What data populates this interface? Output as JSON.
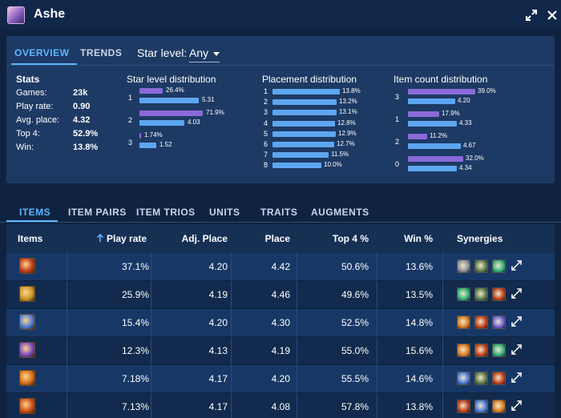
{
  "window": {
    "title": "Ashe"
  },
  "top_tabs": [
    {
      "label": "OVERVIEW",
      "active": true
    },
    {
      "label": "TRENDS",
      "active": false
    }
  ],
  "star_filter": {
    "label": "Star level:",
    "value": "Any"
  },
  "stats": {
    "title": "Stats",
    "rows": [
      {
        "label": "Games:",
        "value": "23k"
      },
      {
        "label": "Play rate:",
        "value": "0.90"
      },
      {
        "label": "Avg. place:",
        "value": "4.32"
      },
      {
        "label": "Top 4:",
        "value": "52.9%"
      },
      {
        "label": "Win:",
        "value": "13.8%"
      }
    ]
  },
  "star_distribution": {
    "title": "Star level distribution",
    "rows": [
      {
        "label": "1",
        "purple": 26.4,
        "purple_text": "26.4%",
        "blue": 5.31,
        "blue_text": "5.31"
      },
      {
        "label": "2",
        "purple": 71.9,
        "purple_text": "71.9%",
        "blue": 4.03,
        "blue_text": "4.03"
      },
      {
        "label": "3",
        "purple": 1.74,
        "purple_text": "1.74%",
        "blue": 1.52,
        "blue_text": "1.52"
      }
    ]
  },
  "placement_distribution": {
    "title": "Placement distribution",
    "rows": [
      {
        "label": "1",
        "value": 13.8,
        "text": "13.8%"
      },
      {
        "label": "2",
        "value": 13.2,
        "text": "13.2%"
      },
      {
        "label": "3",
        "value": 13.1,
        "text": "13.1%"
      },
      {
        "label": "4",
        "value": 12.8,
        "text": "12.8%"
      },
      {
        "label": "5",
        "value": 12.9,
        "text": "12.9%"
      },
      {
        "label": "6",
        "value": 12.7,
        "text": "12.7%"
      },
      {
        "label": "7",
        "value": 11.5,
        "text": "11.5%"
      },
      {
        "label": "8",
        "value": 10.0,
        "text": "10.0%"
      }
    ]
  },
  "item_count_distribution": {
    "title": "Item count distribution",
    "rows": [
      {
        "label": "3",
        "purple": 39.0,
        "purple_text": "39.0%",
        "blue": 4.2,
        "blue_text": "4.20"
      },
      {
        "label": "1",
        "purple": 17.9,
        "purple_text": "17.9%",
        "blue": 4.33,
        "blue_text": "4.33"
      },
      {
        "label": "2",
        "purple": 11.2,
        "purple_text": "11.2%",
        "blue": 4.67,
        "blue_text": "4.67"
      },
      {
        "label": "0",
        "purple": 32.0,
        "purple_text": "32.0%",
        "blue": 4.34,
        "blue_text": "4.34"
      }
    ]
  },
  "bottom_tabs": [
    {
      "label": "ITEMS",
      "active": true
    },
    {
      "label": "ITEM PAIRS",
      "active": false
    },
    {
      "label": "ITEM TRIOS",
      "active": false
    },
    {
      "label": "UNITS",
      "active": false
    },
    {
      "label": "TRAITS",
      "active": false
    },
    {
      "label": "AUGMENTS",
      "active": false
    }
  ],
  "table": {
    "columns": [
      "Items",
      "Play rate",
      "Adj. Place",
      "Place",
      "Top 4 %",
      "Win %",
      "Synergies"
    ],
    "sort_icon": "arrow-up-icon",
    "rows": [
      {
        "icon_color": "#c0401a",
        "play_rate": "37.1%",
        "adj_place": "4.20",
        "place": "4.42",
        "top4": "50.6%",
        "win": "13.6%",
        "synergies": [
          "#8a8f99",
          "#5a7a4a",
          "#2fb07a"
        ]
      },
      {
        "icon_color": "#c9962a",
        "play_rate": "25.9%",
        "adj_place": "4.19",
        "place": "4.46",
        "top4": "49.6%",
        "win": "13.5%",
        "synergies": [
          "#2fb07a",
          "#5a7a4a",
          "#c0401a"
        ]
      },
      {
        "icon_color": "#4a7ad8",
        "play_rate": "15.4%",
        "adj_place": "4.20",
        "place": "4.30",
        "top4": "52.5%",
        "win": "14.8%",
        "synergies": [
          "#d87a20",
          "#c0401a",
          "#6a5ad8"
        ]
      },
      {
        "icon_color": "#7a4ac0",
        "play_rate": "12.3%",
        "adj_place": "4.13",
        "place": "4.19",
        "top4": "55.0%",
        "win": "15.6%",
        "synergies": [
          "#d87a20",
          "#c0401a",
          "#2fb07a"
        ]
      },
      {
        "icon_color": "#d8701a",
        "play_rate": "7.18%",
        "adj_place": "4.17",
        "place": "4.20",
        "top4": "55.5%",
        "win": "14.6%",
        "synergies": [
          "#4a7ad8",
          "#5a7a4a",
          "#c0401a"
        ]
      },
      {
        "icon_color": "#d0501a",
        "play_rate": "7.13%",
        "adj_place": "4.17",
        "place": "4.08",
        "top4": "57.8%",
        "win": "13.8%",
        "synergies": [
          "#c0401a",
          "#4a7ad8",
          "#d87a20"
        ]
      }
    ]
  }
}
